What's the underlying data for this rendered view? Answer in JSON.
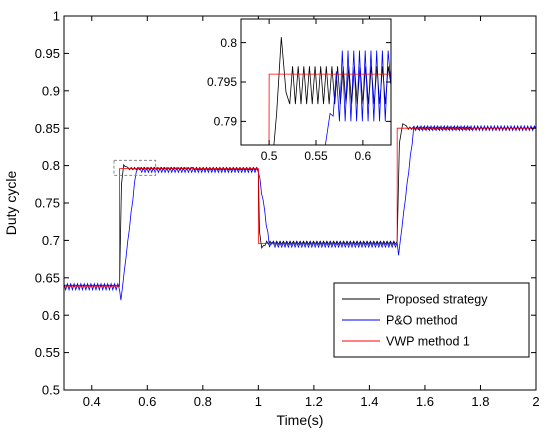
{
  "chart_data": [
    {
      "id": "main",
      "type": "line",
      "xlabel": "Time(s)",
      "ylabel": "Duty cycle",
      "xlim": [
        0.3,
        2.0
      ],
      "ylim": [
        0.5,
        1.0
      ],
      "xticks": [
        0.4,
        0.6,
        0.8,
        1.0,
        1.2,
        1.4,
        1.6,
        1.8,
        2.0
      ],
      "xtick_labels": [
        "0.4",
        "0.6",
        "0.8",
        "1",
        "1.2",
        "1.4",
        "1.6",
        "1.8",
        "2"
      ],
      "yticks": [
        0.5,
        0.55,
        0.6,
        0.65,
        0.7,
        0.75,
        0.8,
        0.85,
        0.9,
        0.95,
        1.0
      ],
      "ytick_labels": [
        "0.5",
        "0.55",
        "0.6",
        "0.65",
        "0.7",
        "0.75",
        "0.8",
        "0.85",
        "0.9",
        "0.95",
        "1"
      ],
      "grid": false,
      "legend_position": "bottom-right",
      "series": [
        {
          "name": "Proposed strategy",
          "color": "#000000",
          "x": [
            0.3,
            0.5,
            0.507,
            0.515,
            0.53,
            1.0,
            1.004,
            1.012,
            1.03,
            1.5,
            1.508,
            1.52,
            1.54,
            2.0
          ],
          "y": [
            0.64,
            0.64,
            0.775,
            0.801,
            0.796,
            0.796,
            0.712,
            0.69,
            0.697,
            0.697,
            0.83,
            0.856,
            0.85,
            0.85
          ],
          "ripple": [
            0,
            0,
            0,
            0,
            0.0015,
            0.0015,
            0,
            0,
            0.002,
            0.002,
            0,
            0,
            0.0015,
            0.0015
          ]
        },
        {
          "name": "P&O method",
          "color": "#0000ff",
          "x": [
            0.3,
            0.5,
            0.505,
            0.56,
            0.58,
            1.0,
            1.04,
            1.06,
            1.5,
            1.505,
            1.56,
            1.58,
            2.0
          ],
          "y": [
            0.638,
            0.638,
            0.62,
            0.794,
            0.794,
            0.794,
            0.694,
            0.694,
            0.694,
            0.68,
            0.85,
            0.85,
            0.85
          ],
          "ripple": [
            0.004,
            0.004,
            0,
            0.003,
            0.003,
            0.003,
            0.003,
            0.003,
            0.003,
            0,
            0.003,
            0.003,
            0.003
          ]
        },
        {
          "name": "VWP method 1",
          "color": "#ff0000",
          "x": [
            0.3,
            0.5,
            0.5,
            1.0,
            1.0,
            1.5,
            1.5,
            2.0
          ],
          "y": [
            0.638,
            0.638,
            0.796,
            0.796,
            0.696,
            0.696,
            0.85,
            0.85
          ],
          "ripple": [
            0,
            0,
            0,
            0,
            0,
            0,
            0,
            0
          ]
        }
      ]
    },
    {
      "id": "inset",
      "type": "line",
      "xlim": [
        0.47,
        0.63
      ],
      "ylim": [
        0.787,
        0.803
      ],
      "xticks": [
        0.5,
        0.55,
        0.6
      ],
      "xtick_labels": [
        "0.5",
        "0.55",
        "0.6"
      ],
      "yticks": [
        0.79,
        0.795,
        0.8
      ],
      "ytick_labels": [
        "0.79",
        "0.795",
        "0.8"
      ],
      "series": [
        {
          "name": "Proposed strategy",
          "color": "#000000",
          "x": [
            0.5,
            0.508,
            0.513,
            0.518,
            0.522,
            0.63
          ],
          "y": [
            0.78,
            0.791,
            0.8007,
            0.7937,
            0.7946,
            0.7946
          ],
          "ripple": [
            0,
            0,
            0,
            0,
            0.0024,
            0.0024
          ]
        },
        {
          "name": "P&O method",
          "color": "#0000ff",
          "x": [
            0.55,
            0.56,
            0.565,
            0.575,
            0.63
          ],
          "y": [
            0.78,
            0.787,
            0.791,
            0.7945,
            0.7945
          ],
          "ripple": [
            0,
            0,
            0,
            0.0045,
            0.0045
          ]
        },
        {
          "name": "VWP method 1",
          "color": "#ff0000",
          "x": [
            0.4999,
            0.5,
            0.63
          ],
          "y": [
            0.787,
            0.796,
            0.796
          ],
          "ripple": [
            0,
            0,
            0
          ]
        }
      ]
    }
  ]
}
